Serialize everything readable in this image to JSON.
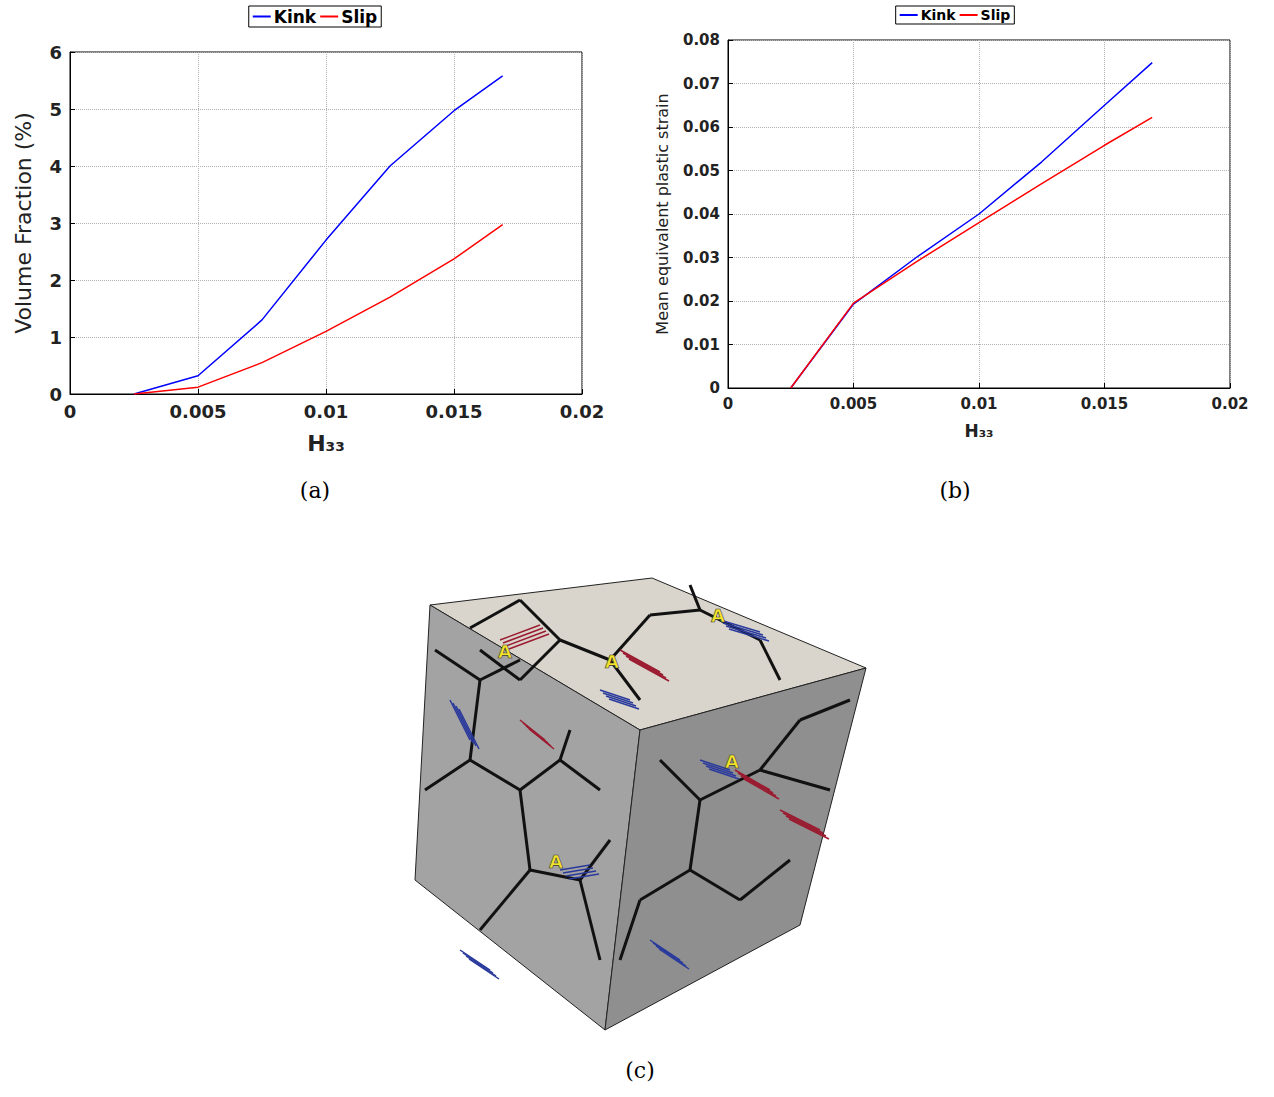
{
  "chart_data": [
    {
      "type": "line",
      "caption": "(a)",
      "x_label": "H₃₃",
      "y_label": "Volume Fraction (%)",
      "x": [
        0.0025,
        0.005,
        0.0075,
        0.01,
        0.0125,
        0.015,
        0.0169
      ],
      "series": [
        {
          "name": "Kink",
          "color": "#0000ff",
          "values": [
            0,
            0.32,
            1.3,
            2.7,
            4.0,
            4.97,
            5.58
          ]
        },
        {
          "name": "Slip",
          "color": "#ff0000",
          "values": [
            0,
            0.12,
            0.55,
            1.1,
            1.7,
            2.37,
            2.97
          ]
        }
      ],
      "xlim": [
        0,
        0.02
      ],
      "xticks": [
        0,
        0.005,
        0.01,
        0.015,
        0.02
      ],
      "ylim": [
        0,
        6
      ],
      "yticks": [
        0,
        1,
        2,
        3,
        4,
        5,
        6
      ],
      "grid": true,
      "legend": "top"
    },
    {
      "type": "line",
      "caption": "(b)",
      "x_label": "H₃₃",
      "y_label": "Mean equivalent plastic strain",
      "x": [
        0.0025,
        0.005,
        0.0075,
        0.01,
        0.0125,
        0.015,
        0.0169
      ],
      "series": [
        {
          "name": "Kink",
          "color": "#0000ff",
          "values": [
            0,
            0.0193,
            0.03,
            0.04,
            0.052,
            0.065,
            0.0748
          ]
        },
        {
          "name": "Slip",
          "color": "#ff0000",
          "values": [
            0,
            0.0195,
            0.029,
            0.038,
            0.047,
            0.0558,
            0.0622
          ]
        }
      ],
      "xlim": [
        0,
        0.02
      ],
      "xticks": [
        0,
        0.005,
        0.01,
        0.015,
        0.02
      ],
      "ylim": [
        0,
        0.08
      ],
      "yticks": [
        0,
        0.01,
        0.02,
        0.03,
        0.04,
        0.05,
        0.06,
        0.07,
        0.08
      ],
      "grid": true,
      "legend": "top"
    }
  ],
  "image": {
    "caption": "(c)",
    "annotations": [
      "A",
      "A",
      "A",
      "A",
      "A"
    ]
  }
}
